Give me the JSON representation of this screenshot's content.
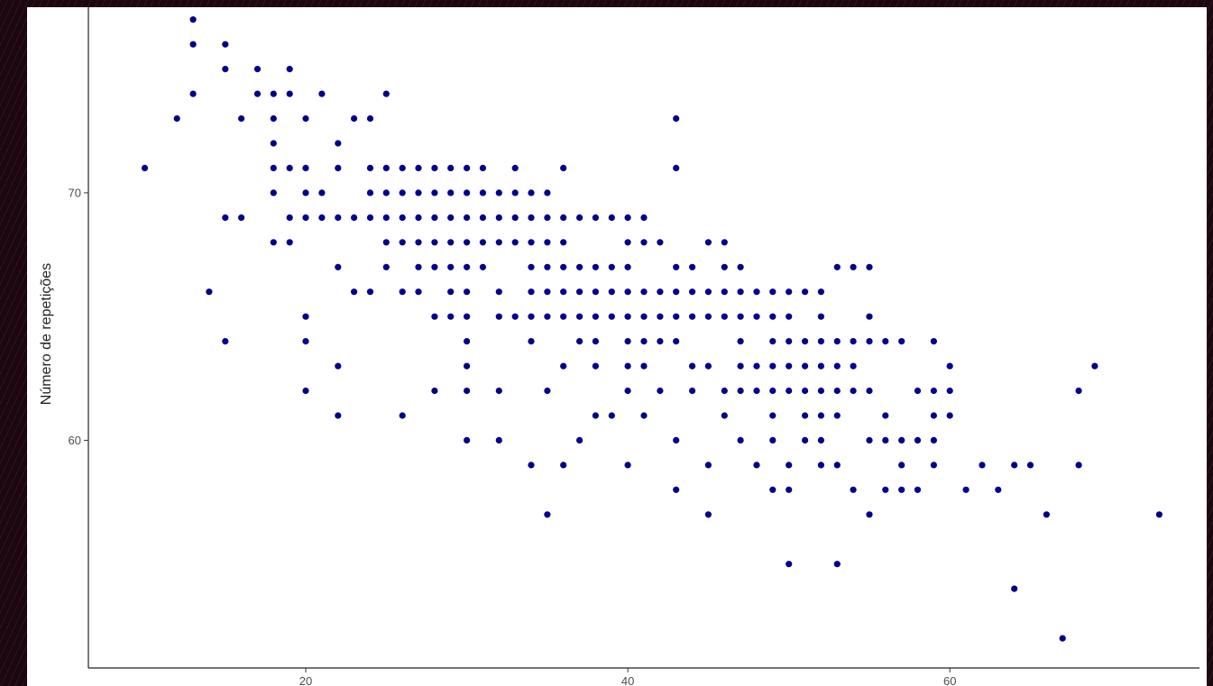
{
  "chart_data": {
    "type": "scatter",
    "title": "",
    "xlabel": "",
    "ylabel": "Número de repetições",
    "xlim": [
      6.5,
      75.5
    ],
    "ylim": [
      50.8,
      77.5
    ],
    "x_ticks": [
      "20",
      "40",
      "60"
    ],
    "y_ticks": [
      "60",
      "70"
    ],
    "point_color": "#00008b",
    "grid": false,
    "points": [
      [
        10,
        71
      ],
      [
        12,
        73
      ],
      [
        13,
        77
      ],
      [
        13,
        76
      ],
      [
        13,
        74
      ],
      [
        14,
        66
      ],
      [
        15,
        76
      ],
      [
        15,
        75
      ],
      [
        15,
        69
      ],
      [
        15,
        64
      ],
      [
        16,
        73
      ],
      [
        16,
        69
      ],
      [
        17,
        75
      ],
      [
        17,
        74
      ],
      [
        18,
        74
      ],
      [
        18,
        73
      ],
      [
        18,
        72
      ],
      [
        18,
        71
      ],
      [
        18,
        70
      ],
      [
        18,
        68
      ],
      [
        19,
        75
      ],
      [
        19,
        74
      ],
      [
        19,
        71
      ],
      [
        19,
        69
      ],
      [
        19,
        68
      ],
      [
        20,
        73
      ],
      [
        20,
        71
      ],
      [
        20,
        70
      ],
      [
        20,
        69
      ],
      [
        20,
        65
      ],
      [
        20,
        64
      ],
      [
        20,
        62
      ],
      [
        21,
        74
      ],
      [
        21,
        70
      ],
      [
        21,
        69
      ],
      [
        22,
        72
      ],
      [
        22,
        71
      ],
      [
        22,
        69
      ],
      [
        22,
        67
      ],
      [
        22,
        63
      ],
      [
        22,
        61
      ],
      [
        23,
        73
      ],
      [
        23,
        69
      ],
      [
        23,
        66
      ],
      [
        24,
        73
      ],
      [
        24,
        71
      ],
      [
        24,
        70
      ],
      [
        24,
        69
      ],
      [
        24,
        66
      ],
      [
        25,
        74
      ],
      [
        25,
        71
      ],
      [
        25,
        70
      ],
      [
        25,
        69
      ],
      [
        25,
        68
      ],
      [
        25,
        67
      ],
      [
        26,
        71
      ],
      [
        26,
        70
      ],
      [
        26,
        69
      ],
      [
        26,
        68
      ],
      [
        26,
        66
      ],
      [
        26,
        61
      ],
      [
        27,
        71
      ],
      [
        27,
        70
      ],
      [
        27,
        69
      ],
      [
        27,
        68
      ],
      [
        27,
        67
      ],
      [
        27,
        66
      ],
      [
        28,
        71
      ],
      [
        28,
        70
      ],
      [
        28,
        69
      ],
      [
        28,
        68
      ],
      [
        28,
        67
      ],
      [
        28,
        65
      ],
      [
        28,
        62
      ],
      [
        29,
        71
      ],
      [
        29,
        70
      ],
      [
        29,
        69
      ],
      [
        29,
        68
      ],
      [
        29,
        67
      ],
      [
        29,
        66
      ],
      [
        29,
        65
      ],
      [
        30,
        71
      ],
      [
        30,
        70
      ],
      [
        30,
        69
      ],
      [
        30,
        68
      ],
      [
        30,
        67
      ],
      [
        30,
        66
      ],
      [
        30,
        65
      ],
      [
        30,
        64
      ],
      [
        30,
        63
      ],
      [
        30,
        62
      ],
      [
        30,
        60
      ],
      [
        31,
        71
      ],
      [
        31,
        70
      ],
      [
        31,
        69
      ],
      [
        31,
        68
      ],
      [
        31,
        67
      ],
      [
        32,
        70
      ],
      [
        32,
        69
      ],
      [
        32,
        68
      ],
      [
        32,
        66
      ],
      [
        32,
        65
      ],
      [
        32,
        62
      ],
      [
        32,
        60
      ],
      [
        33,
        71
      ],
      [
        33,
        70
      ],
      [
        33,
        69
      ],
      [
        33,
        68
      ],
      [
        33,
        65
      ],
      [
        34,
        70
      ],
      [
        34,
        69
      ],
      [
        34,
        68
      ],
      [
        34,
        67
      ],
      [
        34,
        66
      ],
      [
        34,
        65
      ],
      [
        34,
        64
      ],
      [
        34,
        59
      ],
      [
        35,
        70
      ],
      [
        35,
        69
      ],
      [
        35,
        68
      ],
      [
        35,
        67
      ],
      [
        35,
        66
      ],
      [
        35,
        65
      ],
      [
        35,
        62
      ],
      [
        35,
        57
      ],
      [
        36,
        71
      ],
      [
        36,
        69
      ],
      [
        36,
        68
      ],
      [
        36,
        67
      ],
      [
        36,
        66
      ],
      [
        36,
        65
      ],
      [
        36,
        63
      ],
      [
        36,
        59
      ],
      [
        37,
        69
      ],
      [
        37,
        67
      ],
      [
        37,
        66
      ],
      [
        37,
        65
      ],
      [
        37,
        64
      ],
      [
        37,
        60
      ],
      [
        38,
        69
      ],
      [
        38,
        67
      ],
      [
        38,
        66
      ],
      [
        38,
        65
      ],
      [
        38,
        64
      ],
      [
        38,
        63
      ],
      [
        38,
        61
      ],
      [
        39,
        69
      ],
      [
        39,
        67
      ],
      [
        39,
        66
      ],
      [
        39,
        65
      ],
      [
        39,
        61
      ],
      [
        40,
        69
      ],
      [
        40,
        68
      ],
      [
        40,
        67
      ],
      [
        40,
        66
      ],
      [
        40,
        65
      ],
      [
        40,
        64
      ],
      [
        40,
        63
      ],
      [
        40,
        62
      ],
      [
        40,
        59
      ],
      [
        41,
        69
      ],
      [
        41,
        68
      ],
      [
        41,
        66
      ],
      [
        41,
        65
      ],
      [
        41,
        64
      ],
      [
        41,
        63
      ],
      [
        41,
        61
      ],
      [
        42,
        68
      ],
      [
        42,
        66
      ],
      [
        42,
        65
      ],
      [
        42,
        64
      ],
      [
        42,
        62
      ],
      [
        43,
        73
      ],
      [
        43,
        71
      ],
      [
        43,
        67
      ],
      [
        43,
        66
      ],
      [
        43,
        65
      ],
      [
        43,
        64
      ],
      [
        43,
        60
      ],
      [
        43,
        58
      ],
      [
        44,
        67
      ],
      [
        44,
        66
      ],
      [
        44,
        65
      ],
      [
        44,
        63
      ],
      [
        44,
        62
      ],
      [
        45,
        68
      ],
      [
        45,
        66
      ],
      [
        45,
        65
      ],
      [
        45,
        63
      ],
      [
        45,
        59
      ],
      [
        45,
        57
      ],
      [
        46,
        68
      ],
      [
        46,
        67
      ],
      [
        46,
        66
      ],
      [
        46,
        65
      ],
      [
        46,
        62
      ],
      [
        46,
        61
      ],
      [
        47,
        67
      ],
      [
        47,
        66
      ],
      [
        47,
        65
      ],
      [
        47,
        64
      ],
      [
        47,
        63
      ],
      [
        47,
        62
      ],
      [
        47,
        60
      ],
      [
        48,
        66
      ],
      [
        48,
        65
      ],
      [
        48,
        63
      ],
      [
        48,
        62
      ],
      [
        48,
        59
      ],
      [
        49,
        66
      ],
      [
        49,
        65
      ],
      [
        49,
        64
      ],
      [
        49,
        63
      ],
      [
        49,
        62
      ],
      [
        49,
        61
      ],
      [
        49,
        60
      ],
      [
        49,
        58
      ],
      [
        50,
        66
      ],
      [
        50,
        65
      ],
      [
        50,
        64
      ],
      [
        50,
        63
      ],
      [
        50,
        62
      ],
      [
        50,
        59
      ],
      [
        50,
        58
      ],
      [
        50,
        55
      ],
      [
        51,
        66
      ],
      [
        51,
        64
      ],
      [
        51,
        63
      ],
      [
        51,
        62
      ],
      [
        51,
        61
      ],
      [
        51,
        60
      ],
      [
        52,
        66
      ],
      [
        52,
        65
      ],
      [
        52,
        64
      ],
      [
        52,
        63
      ],
      [
        52,
        62
      ],
      [
        52,
        61
      ],
      [
        52,
        60
      ],
      [
        52,
        59
      ],
      [
        53,
        67
      ],
      [
        53,
        64
      ],
      [
        53,
        63
      ],
      [
        53,
        62
      ],
      [
        53,
        61
      ],
      [
        53,
        59
      ],
      [
        53,
        55
      ],
      [
        54,
        67
      ],
      [
        54,
        64
      ],
      [
        54,
        63
      ],
      [
        54,
        62
      ],
      [
        54,
        58
      ],
      [
        55,
        67
      ],
      [
        55,
        65
      ],
      [
        55,
        64
      ],
      [
        55,
        62
      ],
      [
        55,
        60
      ],
      [
        55,
        57
      ],
      [
        56,
        64
      ],
      [
        56,
        61
      ],
      [
        56,
        60
      ],
      [
        56,
        58
      ],
      [
        57,
        64
      ],
      [
        57,
        60
      ],
      [
        57,
        59
      ],
      [
        57,
        58
      ],
      [
        58,
        60
      ],
      [
        58,
        58
      ],
      [
        58,
        62
      ],
      [
        59,
        64
      ],
      [
        59,
        62
      ],
      [
        59,
        61
      ],
      [
        59,
        60
      ],
      [
        59,
        59
      ],
      [
        60,
        63
      ],
      [
        60,
        62
      ],
      [
        60,
        61
      ],
      [
        61,
        58
      ],
      [
        62,
        59
      ],
      [
        63,
        58
      ],
      [
        64,
        59
      ],
      [
        64,
        54
      ],
      [
        65,
        59
      ],
      [
        66,
        57
      ],
      [
        67,
        52
      ],
      [
        68,
        62
      ],
      [
        68,
        59
      ],
      [
        69,
        63
      ],
      [
        73,
        57
      ]
    ]
  }
}
